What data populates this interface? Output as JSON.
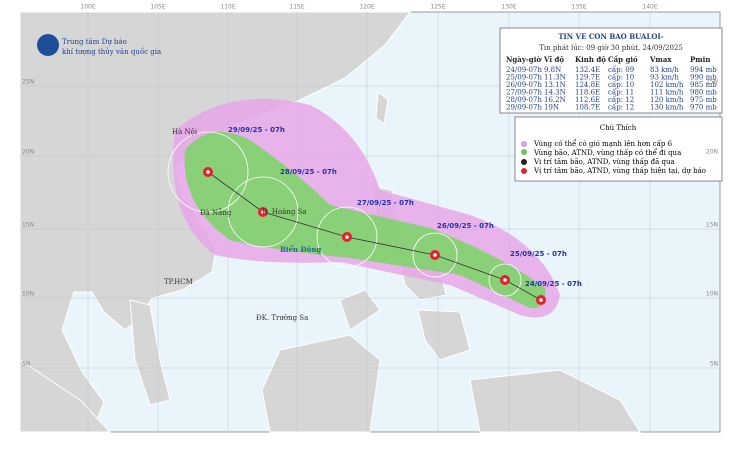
{
  "logo": {
    "line1": "Trung tâm Dự báo",
    "line2": "khí tượng thủy văn quốc gia"
  },
  "grid": {
    "lon": [
      "100E",
      "105E",
      "110E",
      "115E",
      "120E",
      "125E",
      "130E",
      "135E",
      "140E"
    ],
    "lat": [
      "25N",
      "20N",
      "15N",
      "10N",
      "5N"
    ]
  },
  "info": {
    "title": "TIN VE CON BAO BUALOI-",
    "subtitle": "Tin phát lúc: 09 giờ 30 phút, 24/09/2025",
    "header": [
      "Ngày-giờ",
      "Vĩ độ",
      "Kinh độ",
      "Cấp gió",
      "Vmax",
      "Pmin"
    ],
    "rows": [
      [
        "24/09-07h",
        "9.8N",
        "132.4E",
        "cấp: 09",
        "83 km/h",
        "994 mb"
      ],
      [
        "25/09-07h",
        "11.3N",
        "129.7E",
        "cấp: 10",
        "93 km/h",
        "990 mb"
      ],
      [
        "26/09-07h",
        "13.1N",
        "124.8E",
        "cấp: 10",
        "102 km/h",
        "985 mb"
      ],
      [
        "27/09-07h",
        "14.3N",
        "118.6E",
        "cấp: 11",
        "111 km/h",
        "980 mb"
      ],
      [
        "28/09-07h",
        "16.2N",
        "112.6E",
        "cấp: 12",
        "120 km/h",
        "975 mb"
      ],
      [
        "29/09-07h",
        "19N",
        "108.7E",
        "cấp: 12",
        "130 km/h",
        "970 mb"
      ]
    ]
  },
  "legend": {
    "title": "Chú Thích",
    "items": [
      "Vùng có thể có gió mạnh lên hơn cấp 6",
      "Vùng bão, ATND, vùng thấp có thể đi qua",
      "Vị trí tâm bão, ATND, vùng thấp đã qua",
      "Vị trí tâm bão, ATND, vùng thấp hiện tại, dự báo"
    ]
  },
  "places": [
    "Hà Nội",
    "Đà Nẵng",
    "Đ. Hoàng Sa",
    "Biển Đông",
    "TP.HCM",
    "ĐK. Trường Sa"
  ],
  "track": [
    "24/09/25 - 07h",
    "25/09/25 - 07h",
    "26/09/25 - 07h",
    "27/09/25 - 07h",
    "28/09/25 - 07h",
    "29/09/25 - 07h"
  ]
}
